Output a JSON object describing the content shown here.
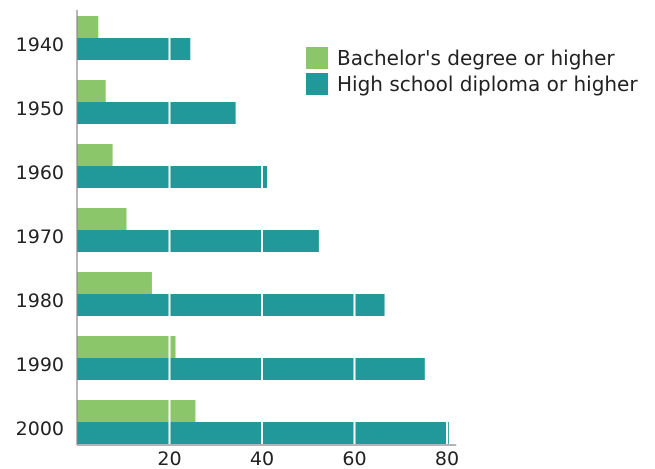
{
  "chart_data": {
    "type": "bar",
    "orientation": "horizontal",
    "categories": [
      "1940",
      "1950",
      "1960",
      "1970",
      "1980",
      "1990",
      "2000"
    ],
    "series": [
      {
        "name": "Bachelor's degree or higher",
        "values": [
          4.6,
          6.2,
          7.7,
          10.7,
          16.2,
          21.3,
          25.6
        ]
      },
      {
        "name": "High school diploma or higher",
        "values": [
          24.5,
          34.3,
          41.1,
          52.3,
          66.5,
          75.2,
          80.4
        ]
      }
    ],
    "x_ticks": [
      "20",
      "40",
      "60",
      "80"
    ],
    "x_tick_values": [
      20,
      40,
      60,
      80
    ],
    "xlim": [
      0,
      82
    ],
    "title": "",
    "xlabel": "",
    "ylabel": "",
    "grid": "white vertical lines at ticks over bars",
    "legend_position": "top-right",
    "colors": {
      "bachelors": "#8cc66a",
      "high_school": "#21999a",
      "axis": "#888888",
      "grid": "#ffffff"
    }
  }
}
